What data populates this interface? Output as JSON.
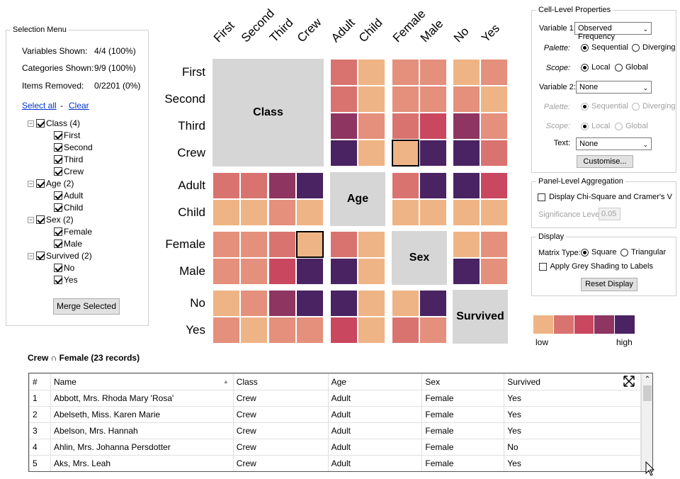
{
  "selection_menu": {
    "title": "Selection Menu",
    "variables_shown_label": "Variables Shown:",
    "variables_shown_value": "4/4 (100%)",
    "categories_shown_label": "Categories Shown:",
    "categories_shown_value": "9/9 (100%)",
    "items_removed_label": "Items Removed:",
    "items_removed_value": "0/2201 (0%)",
    "select_all": "Select all",
    "dash": "-",
    "clear": "Clear",
    "tree": [
      {
        "label": "Class (4)",
        "children": [
          "First",
          "Second",
          "Third",
          "Crew"
        ]
      },
      {
        "label": "Age (2)",
        "children": [
          "Adult",
          "Child"
        ]
      },
      {
        "label": "Sex (2)",
        "children": [
          "Female",
          "Male"
        ]
      },
      {
        "label": "Survived (2)",
        "children": [
          "No",
          "Yes"
        ]
      }
    ],
    "merge_button": "Merge Selected"
  },
  "matrix": {
    "col_labels": [
      "First",
      "Second",
      "Third",
      "Crew",
      "Adult",
      "Child",
      "Female",
      "Male",
      "No",
      "Yes"
    ],
    "row_labels": [
      "First",
      "Second",
      "Third",
      "Crew",
      "Adult",
      "Child",
      "Female",
      "Male",
      "No",
      "Yes"
    ],
    "diagonal_labels": [
      "Class",
      "Age",
      "Sex",
      "Survived"
    ],
    "colors": {
      "1": "#efb485",
      "2": "#e4907c",
      "3": "#d9736f",
      "4": "#c9475f",
      "5": "#8e3562",
      "6": "#4a2363",
      "E": "#ea9d7f"
    },
    "cells": [
      [
        "D",
        "D",
        "D",
        "D",
        "3",
        "1",
        "2",
        "2",
        "1",
        "2"
      ],
      [
        "D",
        "D",
        "D",
        "D",
        "3",
        "1",
        "2",
        "2",
        "2",
        "1"
      ],
      [
        "D",
        "D",
        "D",
        "D",
        "5",
        "2",
        "3",
        "4",
        "5",
        "2"
      ],
      [
        "D",
        "D",
        "D",
        "D",
        "6",
        "1",
        "1",
        "6",
        "6",
        "3"
      ],
      [
        "3",
        "3",
        "5",
        "6",
        "D",
        "D",
        "3",
        "6",
        "6",
        "4"
      ],
      [
        "1",
        "1",
        "2",
        "1",
        "D",
        "D",
        "1",
        "1",
        "1",
        "1"
      ],
      [
        "2",
        "2",
        "3",
        "1",
        "3",
        "1",
        "D",
        "D",
        "1",
        "2"
      ],
      [
        "2",
        "2",
        "4",
        "6",
        "6",
        "1",
        "D",
        "D",
        "6",
        "2"
      ],
      [
        "1",
        "2",
        "5",
        "6",
        "6",
        "1",
        "1",
        "6",
        "D",
        "D"
      ],
      [
        "2",
        "1",
        "2",
        "2",
        "4",
        "1",
        "3",
        "2",
        "D",
        "D"
      ]
    ]
  },
  "cell_props": {
    "title": "Cell-Level Properties",
    "var1_label": "Variable 1:",
    "var1_value": "Observed Frequency",
    "palette_label": "Palette:",
    "sequential": "Sequential",
    "diverging": "Diverging",
    "scope_label": "Scope:",
    "local": "Local",
    "global": "Global",
    "var2_label": "Variable 2:",
    "var2_value": "None",
    "text_label": "Text:",
    "text_value": "None",
    "customise": "Customise..."
  },
  "panel_agg": {
    "title": "Panel-Level Aggregation",
    "chi_label": "Display Chi-Square and Cramer's V",
    "sig_label": "Significance Level:",
    "sig_value": "0.05"
  },
  "display": {
    "title": "Display",
    "matrix_type_label": "Matrix Type:",
    "square": "Square",
    "triangular": "Triangular",
    "grey_label": "Apply Grey Shading to Labels",
    "reset": "Reset Display"
  },
  "legend": {
    "low": "low",
    "high": "high",
    "swatches": [
      "#efb485",
      "#d9736f",
      "#c9475f",
      "#8e3562",
      "#4a2363"
    ]
  },
  "records": {
    "title": "Crew ∩ Female (23 records)",
    "headers": [
      "#",
      "Name",
      "Class",
      "Age",
      "Sex",
      "Survived"
    ],
    "rows": [
      [
        "1",
        "Abbott, Mrs. Rhoda Mary 'Rosa'",
        "Crew",
        "Adult",
        "Female",
        "Yes"
      ],
      [
        "2",
        "Abelseth, Miss. Karen Marie",
        "Crew",
        "Adult",
        "Female",
        "Yes"
      ],
      [
        "3",
        "Abelson, Mrs. Hannah",
        "Crew",
        "Adult",
        "Female",
        "Yes"
      ],
      [
        "4",
        "Ahlin, Mrs. Johanna Persdotter",
        "Crew",
        "Adult",
        "Female",
        "No"
      ],
      [
        "5",
        "Aks, Mrs. Leah",
        "Crew",
        "Adult",
        "Female",
        "Yes"
      ]
    ]
  }
}
